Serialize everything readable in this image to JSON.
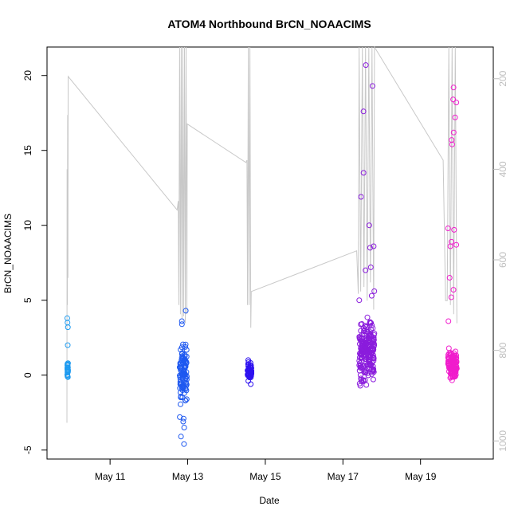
{
  "chart_data": {
    "type": "scatter",
    "title": "ATOM4 Northbound BrCN_NOAACIMS",
    "xlabel": "Date",
    "ylabel": "BrCN_NOAACIMS",
    "x_tick_labels": [
      "May 11",
      "May 13",
      "May 15",
      "May 17",
      "May 19"
    ],
    "x_tick_dates": [
      "2018-05-11",
      "2018-05-13",
      "2018-05-15",
      "2018-05-17",
      "2018-05-19"
    ],
    "xlim": [
      "2018-05-09T09:00",
      "2018-05-20T21:00"
    ],
    "ylim": [
      -5.6,
      21.9
    ],
    "y_ticks": [
      -5,
      0,
      5,
      10,
      15,
      20
    ],
    "y2_ticks": [
      200,
      400,
      600,
      800,
      1000
    ],
    "y2lim": [
      1040,
      130
    ],
    "y2_reversed": true,
    "y2_label": "",
    "grid": false,
    "colors": {
      "altitude_line": "#c8c8c8",
      "axis": "#000000",
      "right_axis": "#bebebe",
      "series": [
        "#1e9bf0",
        "#1e58f0",
        "#2e12f0",
        "#8a1cdc",
        "#f01ccc"
      ]
    },
    "series": [
      {
        "x_range": [
          "2018-05-09T21:30",
          "2018-05-09T22:00"
        ],
        "y_min": -0.6,
        "y_max": 1.2,
        "outliers": [
          2.0,
          3.2,
          3.5,
          3.8
        ]
      },
      {
        "x_range": [
          "2018-05-12T19:00",
          "2018-05-12T23:30"
        ],
        "y_min": -2.6,
        "y_max": 3.0,
        "outliers": [
          -4.6,
          -4.1,
          -3.5,
          -3.1,
          -2.9,
          -2.8,
          3.4,
          3.6,
          4.3
        ]
      },
      {
        "x_range": [
          "2018-05-14T13:00",
          "2018-05-14T15:30"
        ],
        "y_min": -0.8,
        "y_max": 1.2,
        "outliers": []
      },
      {
        "x_range": [
          "2018-05-17T10:00",
          "2018-05-17T19:30"
        ],
        "y_min": -1.1,
        "y_max": 4.5,
        "outliers": [
          5.0,
          5.3,
          5.6,
          7.0,
          7.2,
          8.5,
          8.6,
          10.0,
          11.9,
          13.5,
          17.6,
          19.3,
          20.7
        ]
      },
      {
        "x_range": [
          "2018-05-19T17:00",
          "2018-05-19T22:30"
        ],
        "y_min": -0.6,
        "y_max": 2.0,
        "outliers": [
          3.6,
          5.2,
          5.7,
          6.5,
          8.6,
          8.7,
          8.9,
          9.7,
          9.8,
          15.4,
          15.7,
          16.2,
          17.2,
          18.2,
          18.4,
          19.2
        ]
      }
    ],
    "altitude_track": [
      [
        "2018-05-09T21:20",
        960
      ],
      [
        "2018-05-09T21:25",
        400
      ],
      [
        "2018-05-09T21:35",
        700
      ],
      [
        "2018-05-09T21:45",
        280
      ],
      [
        "2018-05-09T21:55",
        640
      ],
      [
        "2018-05-09T22:05",
        195
      ],
      [
        "2018-05-12T17:30",
        490
      ],
      [
        "2018-05-12T18:10",
        470
      ],
      [
        "2018-05-12T18:30",
        700
      ],
      [
        "2018-05-12T19:00",
        130
      ],
      [
        "2018-05-12T19:30",
        720
      ],
      [
        "2018-05-12T20:00",
        130
      ],
      [
        "2018-05-12T20:30",
        730
      ],
      [
        "2018-05-12T21:00",
        130
      ],
      [
        "2018-05-12T21:30",
        725
      ],
      [
        "2018-05-12T22:00",
        130
      ],
      [
        "2018-05-12T22:30",
        740
      ],
      [
        "2018-05-12T23:00",
        130
      ],
      [
        "2018-05-12T23:30",
        720
      ],
      [
        "2018-05-12T23:45",
        300
      ],
      [
        "2018-05-14T12:00",
        385
      ],
      [
        "2018-05-14T12:40",
        380
      ],
      [
        "2018-05-14T13:00",
        700
      ],
      [
        "2018-05-14T13:30",
        130
      ],
      [
        "2018-05-14T14:00",
        700
      ],
      [
        "2018-05-14T14:30",
        130
      ],
      [
        "2018-05-14T15:00",
        750
      ],
      [
        "2018-05-14T15:20",
        670
      ],
      [
        "2018-05-17T08:30",
        580
      ],
      [
        "2018-05-17T09:30",
        675
      ],
      [
        "2018-05-17T10:00",
        130
      ],
      [
        "2018-05-17T11:00",
        670
      ],
      [
        "2018-05-17T12:00",
        130
      ],
      [
        "2018-05-17T13:00",
        660
      ],
      [
        "2018-05-17T14:00",
        130
      ],
      [
        "2018-05-17T15:00",
        690
      ],
      [
        "2018-05-17T16:00",
        130
      ],
      [
        "2018-05-17T17:00",
        650
      ],
      [
        "2018-05-17T18:00",
        130
      ],
      [
        "2018-05-17T19:00",
        710
      ],
      [
        "2018-05-17T19:30",
        130
      ],
      [
        "2018-05-19T14:00",
        380
      ],
      [
        "2018-05-19T15:30",
        690
      ],
      [
        "2018-05-19T16:30",
        690
      ],
      [
        "2018-05-19T17:30",
        130
      ],
      [
        "2018-05-19T18:30",
        700
      ],
      [
        "2018-05-19T19:30",
        130
      ],
      [
        "2018-05-19T20:30",
        720
      ],
      [
        "2018-05-19T21:30",
        130
      ],
      [
        "2018-05-19T22:30",
        740
      ]
    ]
  }
}
